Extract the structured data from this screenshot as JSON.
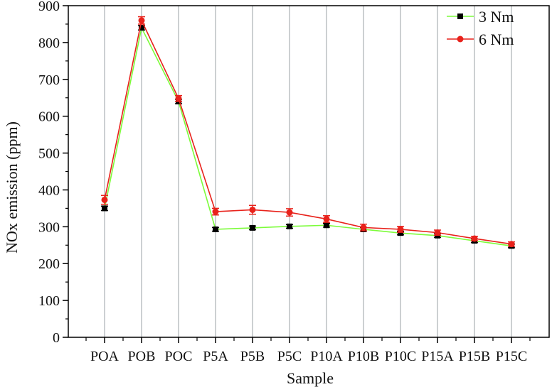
{
  "chart_data": {
    "type": "line",
    "title": "",
    "xlabel": "Sample",
    "ylabel": "NOx emission (ppm)",
    "ylim": [
      0,
      900
    ],
    "yticks": [
      0,
      100,
      200,
      300,
      400,
      500,
      600,
      700,
      800,
      900
    ],
    "categories": [
      "POA",
      "POB",
      "POC",
      "P5A",
      "P5B",
      "P5C",
      "P10A",
      "P10B",
      "P10C",
      "P15A",
      "P15B",
      "P15C"
    ],
    "grid": "vertical lines at categories",
    "legend": "top-right",
    "series": [
      {
        "name": "3 Nm",
        "color": "#7CFC3A",
        "marker": "square",
        "marker_color": "#000000",
        "values": [
          350,
          840,
          640,
          293,
          297,
          301,
          304,
          293,
          283,
          276,
          262,
          248
        ],
        "errors": [
          6,
          6,
          6,
          5,
          5,
          5,
          5,
          5,
          5,
          5,
          5,
          5
        ]
      },
      {
        "name": "6 Nm",
        "color": "#E8221B",
        "marker": "circle",
        "marker_color": "#E8221B",
        "values": [
          373,
          860,
          648,
          341,
          346,
          339,
          321,
          298,
          293,
          284,
          268,
          253
        ],
        "errors": [
          12,
          10,
          8,
          9,
          12,
          10,
          9,
          9,
          8,
          7,
          6,
          6
        ]
      }
    ]
  }
}
